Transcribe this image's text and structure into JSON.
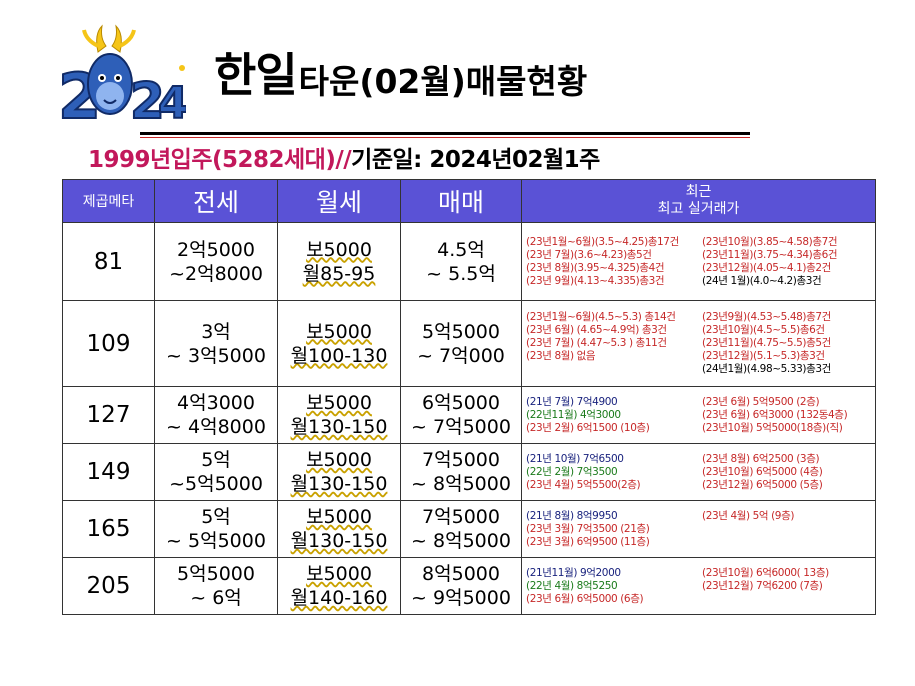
{
  "logo": {
    "year_text": "2024"
  },
  "header": {
    "title_big": "한일",
    "title_rest": "타운(02월)매물현황"
  },
  "subtitle": {
    "red_part": "1999년입주(5282세대)//",
    "black_part": "기준일: 2024년02월1주"
  },
  "table": {
    "headers": [
      "제곱메타",
      "전세",
      "월세",
      "매매",
      "최근",
      "최고 실거래가"
    ],
    "rows": [
      {
        "area": "81",
        "jeonse": [
          "2억5000",
          "~2억8000"
        ],
        "wolse": [
          "보5000",
          "월85-95"
        ],
        "maemae": [
          "4.5억",
          "~ 5.5억"
        ],
        "trades": [
          [
            {
              "t": "(23년1월~6월)(3.5~4.25)총17건",
              "c": "red"
            },
            {
              "t": "(23년10월)(3.85~4.58)총7건",
              "c": "red"
            }
          ],
          [
            {
              "t": "(23년 7월)(3.6~4.23)총5건",
              "c": "red"
            },
            {
              "t": "(23년11월)(3.75~4.34)총6건",
              "c": "red"
            }
          ],
          [
            {
              "t": "(23년 8월)(3.95~4.325)총4건",
              "c": "red"
            },
            {
              "t": "(23년12월)(4.05~4.1)총2건",
              "c": "red"
            }
          ],
          [
            {
              "t": "(23년 9월)(4.13~4.335)총3건",
              "c": "red"
            },
            {
              "t": "(24년 1월)(4.0~4.2)총3건",
              "c": "black"
            }
          ]
        ]
      },
      {
        "area": "109",
        "jeonse": [
          "3억",
          "~ 3억5000"
        ],
        "wolse": [
          "보5000",
          "월100-130"
        ],
        "maemae": [
          "5억5000",
          "~ 7억000"
        ],
        "trades": [
          [
            {
              "t": "(23년1월~6월)(4.5~5.3) 총14건",
              "c": "red"
            },
            {
              "t": "(23년9월)(4.53~5.48)총7건",
              "c": "red"
            }
          ],
          [
            {
              "t": "(23년 6월) (4.65~4.9억) 총3건",
              "c": "red"
            },
            {
              "t": "(23년10월)(4.5~5.5)총6건",
              "c": "red"
            }
          ],
          [
            {
              "t": "(23년 7월) (4.47~5.3 ) 총11건",
              "c": "red"
            },
            {
              "t": "(23년11월)(4.75~5.5)총5건",
              "c": "red"
            }
          ],
          [
            {
              "t": "(23년 8월) 없음",
              "c": "red"
            },
            {
              "t": "(23년12월)(5.1~5.3)총3건",
              "c": "red"
            }
          ],
          [
            {
              "t": "",
              "c": "black"
            },
            {
              "t": "(24년1월)(4.98~5.33)총3건",
              "c": "black"
            }
          ]
        ]
      },
      {
        "area": "127",
        "jeonse": [
          "4억3000",
          "~ 4억8000"
        ],
        "wolse": [
          "보5000",
          "월130-150"
        ],
        "maemae": [
          "6억5000",
          "~ 7억5000"
        ],
        "trades": [
          [
            {
              "t": "(21년 7월) 7억4900",
              "c": "blue"
            },
            {
              "t": "(23년 6월) 5억9500 (2층)",
              "c": "red"
            }
          ],
          [
            {
              "t": "(22년11월) 4억3000",
              "c": "green"
            },
            {
              "t": "(23년 6월) 6억3000 (132동4층)",
              "c": "red"
            }
          ],
          [
            {
              "t": "(23년 2월) 6억1500 (10층)",
              "c": "red"
            },
            {
              "t": "(23년10월) 5억5000(18층)(직)",
              "c": "red"
            }
          ]
        ]
      },
      {
        "area": "149",
        "jeonse": [
          "5억",
          "~5억5000"
        ],
        "wolse": [
          "보5000",
          "월130-150"
        ],
        "maemae": [
          "7억5000",
          "~ 8억5000"
        ],
        "trades": [
          [
            {
              "t": "(21년 10월) 7억6500",
              "c": "blue"
            },
            {
              "t": "(23년 8월) 6억2500 (3층)",
              "c": "red"
            }
          ],
          [
            {
              "t": "(22년  2월) 7억3500",
              "c": "green"
            },
            {
              "t": "(23년10월) 6억5000 (4층)",
              "c": "red"
            }
          ],
          [
            {
              "t": "(23년  4월) 5억5500(2층)",
              "c": "red"
            },
            {
              "t": "(23년12월) 6억5000 (5층)",
              "c": "red"
            }
          ]
        ]
      },
      {
        "area": "165",
        "jeonse": [
          "5억",
          "~ 5억5000"
        ],
        "wolse": [
          "보5000",
          "월130-150"
        ],
        "maemae": [
          "7억5000",
          "~ 8억5000"
        ],
        "trades": [
          [
            {
              "t": "(21년 8월) 8억9950",
              "c": "blue"
            },
            {
              "t": "(23년 4월) 5억 (9층)",
              "c": "red"
            }
          ],
          [
            {
              "t": "(23년 3월) 7억3500 (21층)",
              "c": "red"
            },
            {
              "t": "",
              "c": "red"
            }
          ],
          [
            {
              "t": "(23년 3월) 6억9500 (11층)",
              "c": "red"
            },
            {
              "t": "",
              "c": "red"
            }
          ]
        ]
      },
      {
        "area": "205",
        "jeonse": [
          "5억5000",
          "~ 6억"
        ],
        "wolse": [
          "보5000",
          "월140-160"
        ],
        "maemae": [
          "8억5000",
          "~ 9억5000"
        ],
        "trades": [
          [
            {
              "t": "(21년11월) 9억2000",
              "c": "blue"
            },
            {
              "t": "(23년10월) 6억6000( 13층)",
              "c": "red"
            }
          ],
          [
            {
              "t": "(22년  4월)  8억5250",
              "c": "green"
            },
            {
              "t": "(23년12월) 7억6200 (7층)",
              "c": "red"
            }
          ],
          [
            {
              "t": "(23년 6월)   6억5000 (6층)",
              "c": "red"
            },
            {
              "t": "",
              "c": "red"
            }
          ]
        ]
      }
    ]
  },
  "colors": {
    "header_bg": "#5a52d6",
    "red": "#c62828",
    "blue": "#1a237e",
    "green": "#1b7a1b",
    "pink": "#c2185b"
  }
}
